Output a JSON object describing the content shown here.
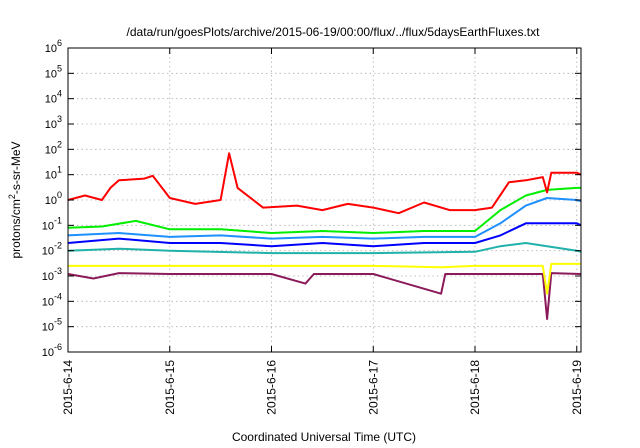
{
  "chart_data": {
    "type": "line",
    "title": "/data/run/goesPlots/archive/2015-06-19/00:00/flux/../flux/5daysEarthFluxes.txt",
    "xlabel": "Coordinated Universal Time (UTC)",
    "ylabel": {
      "before": "protons/cm",
      "sup": "2",
      "after": "-s-sr-MeV"
    },
    "y_scale": "log",
    "ylim_exponent": [
      -6,
      6
    ],
    "y_ticks": [
      {
        "base": "10",
        "exp": "-6"
      },
      {
        "base": "10",
        "exp": "-5"
      },
      {
        "base": "10",
        "exp": "-4"
      },
      {
        "base": "10",
        "exp": "-3"
      },
      {
        "base": "10",
        "exp": "-2"
      },
      {
        "base": "10",
        "exp": "-1"
      },
      {
        "base": "10",
        "exp": "0"
      },
      {
        "base": "10",
        "exp": "1"
      },
      {
        "base": "10",
        "exp": "2"
      },
      {
        "base": "10",
        "exp": "3"
      },
      {
        "base": "10",
        "exp": "4"
      },
      {
        "base": "10",
        "exp": "5"
      },
      {
        "base": "10",
        "exp": "6"
      }
    ],
    "x_range": [
      "2015-06-14T00:00",
      "2015-06-19T01:00"
    ],
    "x_ticks": [
      "2015-6-14",
      "2015-6-15",
      "2015-6-16",
      "2015-6-17",
      "2015-6-18",
      "2015-6-19"
    ],
    "grid": true,
    "series": [
      {
        "color": "#ff0000",
        "values": [
          {
            "x": "2015-06-14T00:00",
            "y": 1.0
          },
          {
            "x": "2015-06-14T04:00",
            "y": 1.5
          },
          {
            "x": "2015-06-14T08:00",
            "y": 1.0
          },
          {
            "x": "2015-06-14T10:00",
            "y": 3.0
          },
          {
            "x": "2015-06-14T12:00",
            "y": 6.0
          },
          {
            "x": "2015-06-14T18:00",
            "y": 7.0
          },
          {
            "x": "2015-06-14T20:00",
            "y": 9.0
          },
          {
            "x": "2015-06-15T00:00",
            "y": 1.2
          },
          {
            "x": "2015-06-15T06:00",
            "y": 0.7
          },
          {
            "x": "2015-06-15T12:00",
            "y": 1.0
          },
          {
            "x": "2015-06-15T14:00",
            "y": 70.0
          },
          {
            "x": "2015-06-15T16:00",
            "y": 3.0
          },
          {
            "x": "2015-06-15T22:00",
            "y": 0.5
          },
          {
            "x": "2015-06-16T06:00",
            "y": 0.6
          },
          {
            "x": "2015-06-16T12:00",
            "y": 0.4
          },
          {
            "x": "2015-06-16T18:00",
            "y": 0.7
          },
          {
            "x": "2015-06-17T00:00",
            "y": 0.5
          },
          {
            "x": "2015-06-17T06:00",
            "y": 0.3
          },
          {
            "x": "2015-06-17T12:00",
            "y": 0.8
          },
          {
            "x": "2015-06-17T18:00",
            "y": 0.4
          },
          {
            "x": "2015-06-18T00:00",
            "y": 0.4
          },
          {
            "x": "2015-06-18T04:00",
            "y": 0.5
          },
          {
            "x": "2015-06-18T08:00",
            "y": 5.0
          },
          {
            "x": "2015-06-18T12:00",
            "y": 6.0
          },
          {
            "x": "2015-06-18T16:00",
            "y": 8.0
          },
          {
            "x": "2015-06-18T17:00",
            "y": 2.0
          },
          {
            "x": "2015-06-18T18:00",
            "y": 12.0
          },
          {
            "x": "2015-06-19T00:00",
            "y": 12.0
          },
          {
            "x": "2015-06-19T01:00",
            "y": 10.0
          }
        ]
      },
      {
        "color": "#00ee00",
        "values": [
          {
            "x": "2015-06-14T00:00",
            "y": 0.08
          },
          {
            "x": "2015-06-14T08:00",
            "y": 0.09
          },
          {
            "x": "2015-06-14T16:00",
            "y": 0.15
          },
          {
            "x": "2015-06-15T00:00",
            "y": 0.07
          },
          {
            "x": "2015-06-15T12:00",
            "y": 0.07
          },
          {
            "x": "2015-06-16T00:00",
            "y": 0.05
          },
          {
            "x": "2015-06-16T12:00",
            "y": 0.06
          },
          {
            "x": "2015-06-17T00:00",
            "y": 0.05
          },
          {
            "x": "2015-06-17T12:00",
            "y": 0.06
          },
          {
            "x": "2015-06-18T00:00",
            "y": 0.06
          },
          {
            "x": "2015-06-18T06:00",
            "y": 0.4
          },
          {
            "x": "2015-06-18T12:00",
            "y": 1.5
          },
          {
            "x": "2015-06-18T17:00",
            "y": 2.5
          },
          {
            "x": "2015-06-19T00:00",
            "y": 3.0
          },
          {
            "x": "2015-06-19T01:00",
            "y": 3.0
          }
        ]
      },
      {
        "color": "#0000ff",
        "values": [
          {
            "x": "2015-06-14T00:00",
            "y": 0.02
          },
          {
            "x": "2015-06-14T12:00",
            "y": 0.03
          },
          {
            "x": "2015-06-15T00:00",
            "y": 0.02
          },
          {
            "x": "2015-06-15T12:00",
            "y": 0.02
          },
          {
            "x": "2015-06-16T00:00",
            "y": 0.015
          },
          {
            "x": "2015-06-16T12:00",
            "y": 0.02
          },
          {
            "x": "2015-06-17T00:00",
            "y": 0.015
          },
          {
            "x": "2015-06-17T12:00",
            "y": 0.02
          },
          {
            "x": "2015-06-18T00:00",
            "y": 0.02
          },
          {
            "x": "2015-06-18T06:00",
            "y": 0.04
          },
          {
            "x": "2015-06-18T12:00",
            "y": 0.12
          },
          {
            "x": "2015-06-18T17:00",
            "y": 0.12
          },
          {
            "x": "2015-06-19T00:00",
            "y": 0.12
          },
          {
            "x": "2015-06-19T01:00",
            "y": 0.1
          }
        ]
      },
      {
        "color": "#1e90ff",
        "values": [
          {
            "x": "2015-06-14T00:00",
            "y": 0.04
          },
          {
            "x": "2015-06-14T12:00",
            "y": 0.05
          },
          {
            "x": "2015-06-15T00:00",
            "y": 0.035
          },
          {
            "x": "2015-06-15T12:00",
            "y": 0.04
          },
          {
            "x": "2015-06-16T00:00",
            "y": 0.03
          },
          {
            "x": "2015-06-16T12:00",
            "y": 0.035
          },
          {
            "x": "2015-06-17T00:00",
            "y": 0.03
          },
          {
            "x": "2015-06-17T12:00",
            "y": 0.035
          },
          {
            "x": "2015-06-18T00:00",
            "y": 0.035
          },
          {
            "x": "2015-06-18T06:00",
            "y": 0.12
          },
          {
            "x": "2015-06-18T12:00",
            "y": 0.6
          },
          {
            "x": "2015-06-18T17:00",
            "y": 1.2
          },
          {
            "x": "2015-06-19T00:00",
            "y": 1.0
          },
          {
            "x": "2015-06-19T01:00",
            "y": 0.9
          }
        ]
      },
      {
        "color": "#20b2aa",
        "values": [
          {
            "x": "2015-06-14T00:00",
            "y": 0.01
          },
          {
            "x": "2015-06-14T12:00",
            "y": 0.012
          },
          {
            "x": "2015-06-15T00:00",
            "y": 0.01
          },
          {
            "x": "2015-06-16T00:00",
            "y": 0.008
          },
          {
            "x": "2015-06-17T00:00",
            "y": 0.008
          },
          {
            "x": "2015-06-18T00:00",
            "y": 0.009
          },
          {
            "x": "2015-06-18T06:00",
            "y": 0.015
          },
          {
            "x": "2015-06-18T12:00",
            "y": 0.02
          },
          {
            "x": "2015-06-18T17:00",
            "y": 0.015
          },
          {
            "x": "2015-06-19T00:00",
            "y": 0.01
          },
          {
            "x": "2015-06-19T01:00",
            "y": 0.009
          }
        ]
      },
      {
        "color": "#ffff00",
        "values": [
          {
            "x": "2015-06-14T00:00",
            "y": 0.0025
          },
          {
            "x": "2015-06-15T00:00",
            "y": 0.0025
          },
          {
            "x": "2015-06-16T00:00",
            "y": 0.0025
          },
          {
            "x": "2015-06-17T00:00",
            "y": 0.0025
          },
          {
            "x": "2015-06-17T16:00",
            "y": 0.0022
          },
          {
            "x": "2015-06-18T00:00",
            "y": 0.0025
          },
          {
            "x": "2015-06-18T16:00",
            "y": 0.0025
          },
          {
            "x": "2015-06-18T17:00",
            "y": 0.0002
          },
          {
            "x": "2015-06-18T18:00",
            "y": 0.003
          },
          {
            "x": "2015-06-19T01:00",
            "y": 0.003
          }
        ]
      },
      {
        "color": "#8b1a5a",
        "values": [
          {
            "x": "2015-06-14T00:00",
            "y": 0.0012
          },
          {
            "x": "2015-06-14T06:00",
            "y": 0.0008
          },
          {
            "x": "2015-06-14T12:00",
            "y": 0.0013
          },
          {
            "x": "2015-06-15T00:00",
            "y": 0.0012
          },
          {
            "x": "2015-06-16T00:00",
            "y": 0.0012
          },
          {
            "x": "2015-06-16T08:00",
            "y": 0.0005
          },
          {
            "x": "2015-06-16T10:00",
            "y": 0.0012
          },
          {
            "x": "2015-06-17T00:00",
            "y": 0.0012
          },
          {
            "x": "2015-06-17T16:00",
            "y": 0.0002
          },
          {
            "x": "2015-06-17T17:00",
            "y": 0.0012
          },
          {
            "x": "2015-06-18T00:00",
            "y": 0.0012
          },
          {
            "x": "2015-06-18T16:00",
            "y": 0.0012
          },
          {
            "x": "2015-06-18T17:00",
            "y": 2e-05
          },
          {
            "x": "2015-06-18T18:00",
            "y": 0.0013
          },
          {
            "x": "2015-06-19T01:00",
            "y": 0.0012
          }
        ]
      }
    ]
  }
}
